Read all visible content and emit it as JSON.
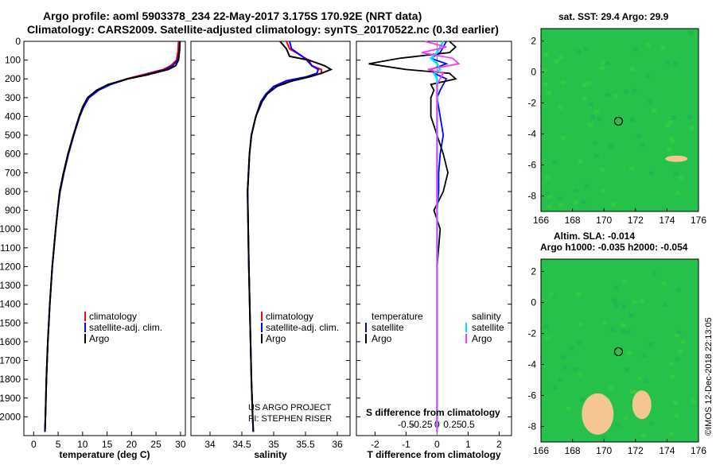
{
  "header": {
    "line1": "Argo profile: aoml 5903378_234 22-May-2017 3.175S 170.92E (NRT data)",
    "line2": "Climatology: CARS2009. Satellite-adjusted climatology: synTS_20170522.nc (0.3d earlier)"
  },
  "credit": "US ARGO PROJECT",
  "pi": "PI: STEPHEN RISER",
  "watermark": "©IMOS 12-Dec-2018 22:13:05",
  "colors": {
    "climatology": "#ff0000",
    "satellite": "#0000ff",
    "argo": "#000000",
    "sat_sal": "#00e5ff",
    "argo_sal": "#ff33ff",
    "map_green": "#22c55e",
    "map_tan": "#f5c690"
  },
  "chart_data": [
    {
      "type": "line",
      "title": "",
      "xlabel": "temperature (deg C)",
      "ylabel": "",
      "xlim": [
        -2,
        31
      ],
      "ylim": [
        2100,
        0
      ],
      "x_ticks": [
        "0",
        "5",
        "10",
        "15",
        "20",
        "25",
        "30"
      ],
      "y_ticks": [
        "0",
        "100",
        "200",
        "300",
        "400",
        "500",
        "600",
        "700",
        "800",
        "900",
        "1000",
        "1100",
        "1200",
        "1300",
        "1400",
        "1500",
        "1600",
        "1700",
        "1800",
        "1900",
        "2000"
      ],
      "depth": [
        0,
        50,
        100,
        130,
        150,
        180,
        200,
        230,
        260,
        300,
        350,
        400,
        500,
        600,
        700,
        800,
        900,
        1000,
        1200,
        1400,
        1600,
        1800,
        2000,
        2080
      ],
      "legend": [
        "climatology",
        "satellite-adj. clim.",
        "Argo"
      ],
      "series": [
        {
          "name": "climatology",
          "values": [
            29.6,
            29.5,
            29.2,
            28.0,
            26.5,
            22.0,
            19.0,
            15.5,
            13.2,
            11.2,
            10.2,
            9.4,
            8.2,
            7.1,
            6.2,
            5.4,
            4.9,
            4.5,
            3.8,
            3.3,
            2.9,
            2.6,
            2.4,
            2.3
          ]
        },
        {
          "name": "satellite-adj. clim.",
          "values": [
            29.9,
            29.8,
            29.4,
            28.4,
            27.0,
            22.6,
            19.3,
            15.7,
            13.3,
            11.3,
            10.2,
            9.4,
            8.2,
            7.1,
            6.2,
            5.4,
            4.9,
            4.5,
            3.8,
            3.3,
            2.9,
            2.6,
            2.4,
            2.3
          ]
        },
        {
          "name": "Argo",
          "values": [
            29.9,
            29.8,
            29.6,
            29.0,
            27.5,
            23.0,
            19.2,
            15.2,
            12.9,
            11.0,
            10.0,
            9.3,
            8.1,
            7.0,
            6.1,
            5.3,
            4.9,
            4.5,
            3.8,
            3.3,
            2.9,
            2.6,
            2.4,
            2.3
          ]
        }
      ]
    },
    {
      "type": "line",
      "xlabel": "salinity",
      "xlim": [
        33.7,
        36.2
      ],
      "ylim": [
        2100,
        0
      ],
      "x_ticks": [
        "34",
        "34.5",
        "35",
        "35.5",
        "36"
      ],
      "depth": [
        0,
        40,
        80,
        100,
        130,
        150,
        170,
        190,
        210,
        240,
        280,
        320,
        400,
        500,
        600,
        800,
        1000,
        1200,
        1500,
        1800,
        2000,
        2080
      ],
      "legend": [
        "climatology",
        "satellite-adj. clim.",
        "Argo"
      ],
      "series": [
        {
          "name": "climatology",
          "values": [
            35.2,
            35.25,
            35.45,
            35.55,
            35.6,
            35.75,
            35.75,
            35.55,
            35.25,
            35.0,
            34.9,
            34.8,
            34.72,
            34.65,
            34.62,
            34.59,
            34.6,
            34.61,
            34.63,
            34.65,
            34.67,
            34.68
          ]
        },
        {
          "name": "satellite-adj. clim.",
          "values": [
            35.25,
            35.28,
            35.45,
            35.52,
            35.6,
            35.7,
            35.68,
            35.5,
            35.2,
            35.0,
            34.88,
            34.8,
            34.72,
            34.65,
            34.62,
            34.59,
            34.6,
            34.61,
            34.63,
            34.65,
            34.67,
            34.68
          ]
        },
        {
          "name": "Argo",
          "values": [
            35.1,
            35.2,
            35.25,
            35.55,
            35.8,
            35.9,
            35.75,
            35.55,
            35.3,
            35.05,
            34.9,
            34.82,
            34.72,
            34.65,
            34.62,
            34.59,
            34.6,
            34.61,
            34.63,
            34.65,
            34.67,
            34.68
          ]
        }
      ]
    },
    {
      "type": "line",
      "xlabel": "T difference from climatology",
      "title": "S difference from climatology",
      "xlim": [
        -2.6,
        2.4
      ],
      "ylim": [
        2100,
        0
      ],
      "x_ticks": [
        "-2",
        "-1",
        "0",
        "1",
        "2"
      ],
      "s_ticks": [
        "-0.5",
        "-0.25",
        "0",
        "0.25",
        "0.5"
      ],
      "legend_temperature": "temperature",
      "legend_salinity": "salinity",
      "legend_items": [
        "satellite",
        "Argo",
        "satellite",
        "Argo"
      ],
      "depth": [
        0,
        30,
        60,
        90,
        120,
        150,
        170,
        200,
        230,
        260,
        300,
        400,
        500,
        600,
        700,
        800,
        900,
        1000,
        1200,
        1500,
        1800,
        2000,
        2080
      ],
      "series": [
        {
          "name": "T satellite",
          "values": [
            0.3,
            0.2,
            0.1,
            -0.2,
            0.3,
            -0.2,
            -0.1,
            0.3,
            0.2,
            0.1,
            0.0,
            0.1,
            0.2,
            0.1,
            0.05,
            0.05,
            0.0,
            0.0,
            0.0,
            0.0,
            0.0,
            0.0,
            0.0
          ]
        },
        {
          "name": "T Argo",
          "values": [
            0.4,
            0.6,
            0.4,
            -1.2,
            -2.2,
            -1.0,
            0.4,
            0.6,
            -0.2,
            -0.1,
            -0.2,
            -0.2,
            0.0,
            0.2,
            0.35,
            0.2,
            -0.1,
            0.1,
            0.0,
            0.0,
            0.0,
            0.0,
            0.0
          ]
        },
        {
          "name": "S satellite",
          "values": [
            0.1,
            0.05,
            0.0,
            -0.1,
            0.0,
            0.05,
            -0.05,
            0.0,
            0.0,
            0.0,
            0.0,
            0.0,
            0.0,
            0.0,
            0.0,
            0.0,
            0.0,
            0.0,
            0.0,
            0.0,
            0.0,
            0.0,
            0.0
          ]
        },
        {
          "name": "S Argo",
          "values": [
            -0.2,
            0.15,
            -0.25,
            0.25,
            0.35,
            -0.15,
            0.1,
            0.05,
            0.0,
            0.0,
            0.0,
            0.0,
            0.0,
            0.0,
            0.0,
            0.0,
            0.0,
            0.0,
            0.0,
            0.0,
            0.0,
            0.0,
            0.0
          ]
        }
      ]
    },
    {
      "type": "heatmap",
      "title": "sat. SST: 29.4 Argo: 29.9",
      "x_ticks": [
        "166",
        "168",
        "170",
        "172",
        "174",
        "176"
      ],
      "y_ticks": [
        "2",
        "0",
        "-2",
        "-4",
        "-6",
        "-8"
      ],
      "xlim": [
        166,
        176
      ],
      "ylim": [
        -9,
        2.8
      ],
      "marker": [
        170.92,
        -3.175
      ]
    },
    {
      "type": "heatmap",
      "title": "Altim. SLA: -0.014",
      "subtitle": "Argo h1000: -0.035 h2000: -0.054",
      "x_ticks": [
        "166",
        "168",
        "170",
        "172",
        "174",
        "176"
      ],
      "y_ticks": [
        "2",
        "0",
        "-2",
        "-4",
        "-6",
        "-8"
      ],
      "xlim": [
        166,
        176
      ],
      "ylim": [
        -9,
        2.8
      ],
      "marker": [
        170.92,
        -3.175
      ]
    }
  ]
}
